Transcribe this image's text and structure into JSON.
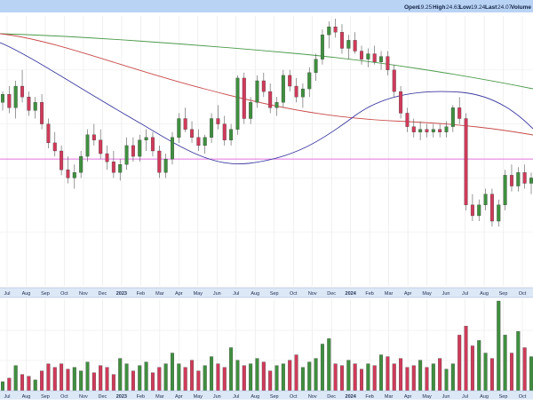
{
  "header": {
    "open_label": "Open",
    "open_value": "19.25",
    "high_label": "High",
    "high_value": "24.63",
    "low_label": "Low",
    "low_value": "19.24",
    "last_label": "Last",
    "last_value": "24.07",
    "volume_label": "Volume"
  },
  "colors": {
    "up": "#3f8f3f",
    "down": "#d03a5a",
    "ma_short": "#3a3aa0",
    "ma_mid": "#c84a4a",
    "ma_long": "#4a9a4a",
    "hline": "#e070e0",
    "header_bg": "#b9d3f5",
    "axis_bg": "#dde8f7"
  },
  "chart_data": {
    "type": "candlestick",
    "x_ticks": [
      "Jul",
      "Aug",
      "Sep",
      "Oct",
      "Nov",
      "Dec",
      "2023",
      "Feb",
      "Mar",
      "Apr",
      "May",
      "Jun",
      "Jul",
      "Aug",
      "Sep",
      "Oct",
      "Nov",
      "Dec",
      "2024",
      "Feb",
      "Mar",
      "Apr",
      "May",
      "Jun",
      "Jul",
      "Aug",
      "Sep",
      "Oct"
    ],
    "horizontal_line": 0.47,
    "price_range": [
      0,
      1
    ],
    "candles": [
      [
        0.68,
        0.72,
        0.65,
        0.71
      ],
      [
        0.71,
        0.74,
        0.64,
        0.66
      ],
      [
        0.66,
        0.76,
        0.62,
        0.74
      ],
      [
        0.74,
        0.8,
        0.68,
        0.7
      ],
      [
        0.7,
        0.72,
        0.63,
        0.65
      ],
      [
        0.65,
        0.7,
        0.62,
        0.68
      ],
      [
        0.68,
        0.71,
        0.58,
        0.6
      ],
      [
        0.6,
        0.62,
        0.51,
        0.53
      ],
      [
        0.53,
        0.57,
        0.48,
        0.5
      ],
      [
        0.5,
        0.52,
        0.41,
        0.43
      ],
      [
        0.43,
        0.48,
        0.38,
        0.4
      ],
      [
        0.4,
        0.45,
        0.36,
        0.42
      ],
      [
        0.42,
        0.5,
        0.4,
        0.48
      ],
      [
        0.48,
        0.58,
        0.46,
        0.56
      ],
      [
        0.56,
        0.6,
        0.52,
        0.54
      ],
      [
        0.54,
        0.58,
        0.47,
        0.49
      ],
      [
        0.49,
        0.52,
        0.43,
        0.46
      ],
      [
        0.46,
        0.5,
        0.4,
        0.42
      ],
      [
        0.42,
        0.47,
        0.39,
        0.45
      ],
      [
        0.45,
        0.55,
        0.43,
        0.52
      ],
      [
        0.52,
        0.55,
        0.46,
        0.48
      ],
      [
        0.48,
        0.56,
        0.46,
        0.54
      ],
      [
        0.54,
        0.58,
        0.5,
        0.55
      ],
      [
        0.55,
        0.57,
        0.48,
        0.5
      ],
      [
        0.5,
        0.52,
        0.4,
        0.42
      ],
      [
        0.42,
        0.49,
        0.4,
        0.47
      ],
      [
        0.47,
        0.57,
        0.45,
        0.55
      ],
      [
        0.55,
        0.64,
        0.53,
        0.62
      ],
      [
        0.62,
        0.66,
        0.57,
        0.58
      ],
      [
        0.58,
        0.61,
        0.53,
        0.55
      ],
      [
        0.55,
        0.58,
        0.5,
        0.52
      ],
      [
        0.52,
        0.56,
        0.49,
        0.55
      ],
      [
        0.55,
        0.64,
        0.53,
        0.62
      ],
      [
        0.62,
        0.67,
        0.58,
        0.6
      ],
      [
        0.6,
        0.63,
        0.52,
        0.54
      ],
      [
        0.54,
        0.6,
        0.52,
        0.58
      ],
      [
        0.58,
        0.78,
        0.56,
        0.77
      ],
      [
        0.77,
        0.79,
        0.6,
        0.62
      ],
      [
        0.62,
        0.7,
        0.6,
        0.68
      ],
      [
        0.68,
        0.78,
        0.66,
        0.76
      ],
      [
        0.76,
        0.79,
        0.7,
        0.72
      ],
      [
        0.72,
        0.75,
        0.64,
        0.66
      ],
      [
        0.66,
        0.7,
        0.63,
        0.68
      ],
      [
        0.68,
        0.8,
        0.66,
        0.78
      ],
      [
        0.78,
        0.8,
        0.72,
        0.74
      ],
      [
        0.74,
        0.77,
        0.68,
        0.7
      ],
      [
        0.7,
        0.75,
        0.66,
        0.73
      ],
      [
        0.73,
        0.81,
        0.7,
        0.79
      ],
      [
        0.79,
        0.86,
        0.76,
        0.84
      ],
      [
        0.84,
        0.95,
        0.82,
        0.93
      ],
      [
        0.93,
        0.98,
        0.88,
        0.96
      ],
      [
        0.96,
        0.99,
        0.92,
        0.94
      ],
      [
        0.94,
        0.97,
        0.86,
        0.88
      ],
      [
        0.88,
        0.93,
        0.84,
        0.91
      ],
      [
        0.91,
        0.94,
        0.86,
        0.87
      ],
      [
        0.87,
        0.89,
        0.82,
        0.84
      ],
      [
        0.84,
        0.88,
        0.81,
        0.86
      ],
      [
        0.86,
        0.89,
        0.82,
        0.83
      ],
      [
        0.83,
        0.87,
        0.8,
        0.85
      ],
      [
        0.85,
        0.87,
        0.78,
        0.8
      ],
      [
        0.8,
        0.82,
        0.7,
        0.72
      ],
      [
        0.72,
        0.74,
        0.62,
        0.64
      ],
      [
        0.64,
        0.66,
        0.57,
        0.59
      ],
      [
        0.59,
        0.62,
        0.55,
        0.57
      ],
      [
        0.57,
        0.61,
        0.54,
        0.58
      ],
      [
        0.58,
        0.6,
        0.55,
        0.57
      ],
      [
        0.57,
        0.6,
        0.55,
        0.58
      ],
      [
        0.58,
        0.6,
        0.55,
        0.57
      ],
      [
        0.57,
        0.61,
        0.55,
        0.59
      ],
      [
        0.59,
        0.67,
        0.57,
        0.66
      ],
      [
        0.66,
        0.7,
        0.6,
        0.62
      ],
      [
        0.62,
        0.64,
        0.28,
        0.3
      ],
      [
        0.3,
        0.34,
        0.24,
        0.26
      ],
      [
        0.26,
        0.32,
        0.24,
        0.3
      ],
      [
        0.3,
        0.36,
        0.28,
        0.34
      ],
      [
        0.34,
        0.36,
        0.22,
        0.24
      ],
      [
        0.24,
        0.32,
        0.22,
        0.3
      ],
      [
        0.3,
        0.43,
        0.28,
        0.41
      ],
      [
        0.41,
        0.45,
        0.35,
        0.37
      ],
      [
        0.37,
        0.44,
        0.35,
        0.42
      ],
      [
        0.42,
        0.45,
        0.36,
        0.38
      ],
      [
        0.38,
        0.42,
        0.34,
        0.4
      ]
    ],
    "volume": [
      0.1,
      0.14,
      0.28,
      0.18,
      0.16,
      0.12,
      0.22,
      0.3,
      0.26,
      0.3,
      0.24,
      0.26,
      0.22,
      0.32,
      0.2,
      0.28,
      0.26,
      0.18,
      0.36,
      0.3,
      0.22,
      0.28,
      0.32,
      0.2,
      0.26,
      0.3,
      0.42,
      0.3,
      0.26,
      0.34,
      0.22,
      0.28,
      0.38,
      0.3,
      0.26,
      0.48,
      0.34,
      0.28,
      0.3,
      0.36,
      0.32,
      0.22,
      0.28,
      0.3,
      0.34,
      0.4,
      0.26,
      0.32,
      0.36,
      0.52,
      0.58,
      0.3,
      0.28,
      0.34,
      0.3,
      0.24,
      0.3,
      0.28,
      0.4,
      0.38,
      0.3,
      0.36,
      0.26,
      0.28,
      0.34,
      0.26,
      0.3,
      0.36,
      0.24,
      0.3,
      0.62,
      0.72,
      0.5,
      0.56,
      0.42,
      0.36,
      1.0,
      0.62,
      0.42,
      0.66,
      0.48,
      0.38
    ]
  }
}
